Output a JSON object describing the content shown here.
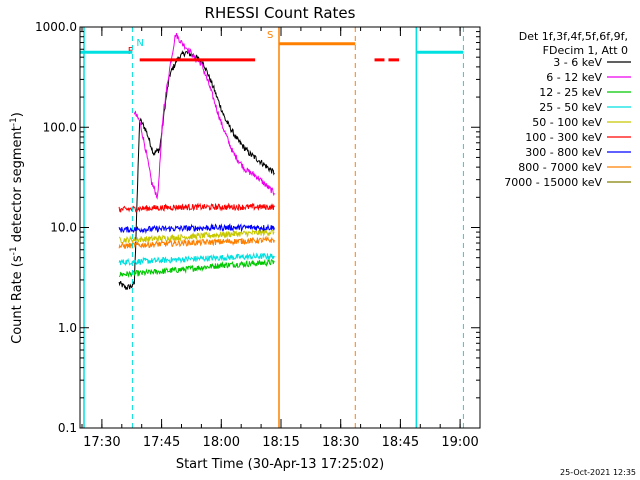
{
  "chart_data": {
    "type": "line",
    "title": "RHESSI Count Rates",
    "xlabel": "Start Time (30-Apr-13 17:25:02)",
    "ylabel_parts": [
      "Count Rate (s",
      "-1",
      " detector segment",
      "-1",
      ")"
    ],
    "y_scale": "log",
    "ylim": [
      0.1,
      1000
    ],
    "y_ticks": [
      {
        "value": 0.1,
        "label": "0.1"
      },
      {
        "value": 1,
        "label": "1.0"
      },
      {
        "value": 10,
        "label": "10.0"
      },
      {
        "value": 100,
        "label": "100.0"
      },
      {
        "value": 1000,
        "label": "1000.0"
      }
    ],
    "xlim": [
      "17:24:30",
      "19:05:00"
    ],
    "x_ticks": [
      "17:30",
      "17:45",
      "18:00",
      "18:15",
      "18:30",
      "18:45",
      "19:00"
    ],
    "x_minor_step_min": 5,
    "grid": false,
    "legend_header": [
      "Det 1f,3f,4f,5f,6f,9f,",
      "FDecim 1, Att 0"
    ],
    "legend_position": "right",
    "series": [
      {
        "name": "3 - 6 keV",
        "color": "#000000",
        "x": [
          "17:34:20",
          "17:36:00",
          "17:37:30",
          "17:38:10",
          "17:39:30",
          "17:41:00",
          "17:43:00",
          "17:44:30",
          "17:46:00",
          "17:47:00",
          "17:49:00",
          "17:51:00",
          "17:53:00",
          "17:55:30",
          "17:58:00",
          "18:01:00",
          "18:04:00",
          "18:07:00",
          "18:10:00",
          "18:13:20"
        ],
        "y": [
          2.8,
          2.5,
          2.6,
          2.8,
          120,
          95,
          55,
          60,
          180,
          330,
          480,
          560,
          520,
          440,
          250,
          120,
          75,
          55,
          45,
          35
        ]
      },
      {
        "name": "6 - 12 keV",
        "color": "#ee00ee",
        "x": [
          "17:38:10",
          "17:39:30",
          "17:41:00",
          "17:42:30",
          "17:44:00",
          "17:45:30",
          "17:47:00",
          "17:48:30",
          "17:50:00",
          "17:52:00",
          "17:53:30",
          "17:55:00",
          "17:57:00",
          "18:00:00",
          "18:03:00",
          "18:06:00",
          "18:09:00",
          "18:13:20"
        ],
        "y": [
          140,
          115,
          60,
          28,
          20,
          150,
          380,
          850,
          700,
          580,
          480,
          430,
          260,
          110,
          55,
          38,
          32,
          22
        ]
      },
      {
        "name": "12 - 25 keV",
        "color": "#00c800",
        "x": [
          "17:34:20",
          "17:40:00",
          "17:50:00",
          "18:00:00",
          "18:13:20"
        ],
        "y": [
          3.4,
          3.5,
          3.8,
          4.2,
          4.5
        ]
      },
      {
        "name": "25 - 50 keV",
        "color": "#00e0e0",
        "x": [
          "17:34:20",
          "17:40:00",
          "17:50:00",
          "18:00:00",
          "18:13:20"
        ],
        "y": [
          4.5,
          4.6,
          4.8,
          5.0,
          5.2
        ]
      },
      {
        "name": "50 - 100 keV",
        "color": "#c8c800",
        "x": [
          "17:34:20",
          "17:40:00",
          "17:50:00",
          "18:00:00",
          "18:13:20"
        ],
        "y": [
          7.5,
          7.6,
          8.0,
          8.5,
          9.0
        ]
      },
      {
        "name": "100 - 300 keV",
        "color": "#ff0000",
        "x": [
          "17:34:20",
          "17:40:00",
          "17:50:00",
          "18:00:00",
          "18:13:20"
        ],
        "y": [
          15,
          15.5,
          16,
          16,
          16
        ]
      },
      {
        "name": "300 - 800 keV",
        "color": "#0000ff",
        "x": [
          "17:34:20",
          "17:40:00",
          "17:50:00",
          "18:00:00",
          "18:13:20"
        ],
        "y": [
          9.5,
          9.6,
          9.8,
          10,
          10
        ]
      },
      {
        "name": "800 - 7000 keV",
        "color": "#ff8000",
        "x": [
          "17:34:20",
          "17:40:00",
          "17:50:00",
          "18:00:00",
          "18:13:20"
        ],
        "y": [
          6.5,
          6.7,
          7.0,
          7.2,
          7.5
        ]
      },
      {
        "name": "7000 - 15000 keV",
        "color": "#808000",
        "x": [],
        "y": []
      }
    ],
    "flag_bars": [
      {
        "label": "F",
        "color": "#ff0000",
        "level": 470,
        "x_start": "17:39:30",
        "x_end": "18:08:30"
      },
      {
        "label": "",
        "color": "#ff0000",
        "level": 470,
        "x_start": "18:38:30",
        "x_end": "18:41:00"
      },
      {
        "label": "",
        "color": "#ff0000",
        "level": 470,
        "x_start": "18:42:00",
        "x_end": "18:44:40"
      },
      {
        "label": "S",
        "color": "#ff8000",
        "level": 680,
        "x_start": "18:14:30",
        "x_end": "18:33:40"
      },
      {
        "label": "N",
        "color": "#00e0e0",
        "level": 560,
        "x_start": "17:24:30",
        "x_end": "17:37:40"
      },
      {
        "label": "",
        "color": "#00e0e0",
        "level": 560,
        "x_start": "18:49:00",
        "x_end": "19:00:50"
      }
    ],
    "vertical_lines": [
      {
        "x": "17:25:30",
        "color": "#00e0e0",
        "style": "solid"
      },
      {
        "x": "17:37:40",
        "color": "#00e0e0",
        "style": "dashed"
      },
      {
        "x": "18:14:30",
        "color": "#ff8000",
        "style": "solid"
      },
      {
        "x": "18:33:40",
        "color": "#ff8000",
        "style": "dashed"
      },
      {
        "x": "18:49:00",
        "color": "#00e0e0",
        "style": "solid"
      },
      {
        "x": "19:00:50",
        "color": "#00e0e0",
        "style": "dashed"
      }
    ],
    "footer_timestamp": "25-Oct-2021 12:35"
  }
}
